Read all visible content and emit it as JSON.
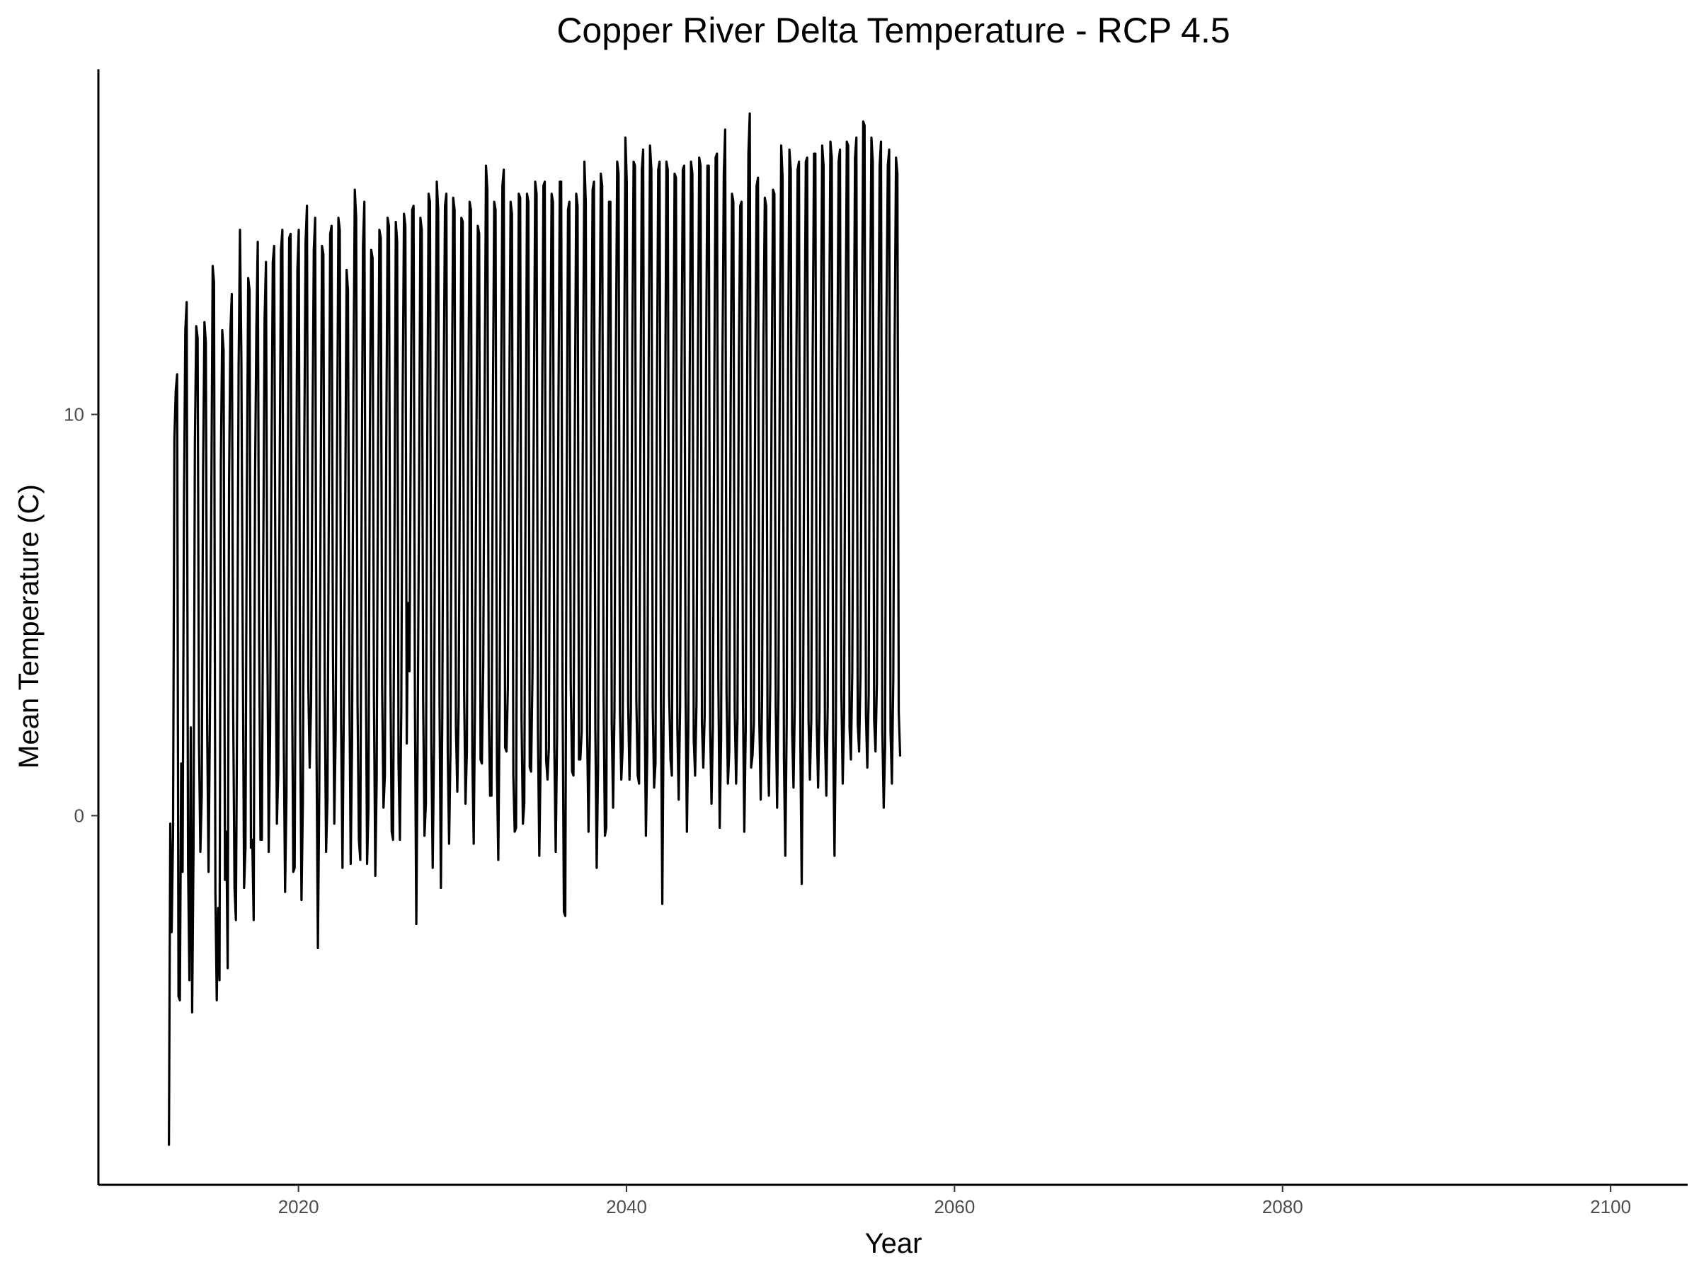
{
  "chart_data": {
    "type": "line",
    "title": "Copper River Delta Temperature - RCP 4.5",
    "xlabel": "Year",
    "ylabel": "Mean Temperature (C)",
    "xlim": [
      2007.8,
      2104.7
    ],
    "ylim": [
      -9.2,
      18.6
    ],
    "x_ticks": [
      2020,
      2040,
      2060,
      2080,
      2100
    ],
    "x_tick_labels": [
      "2020",
      "2040",
      "2060",
      "2080",
      "2100"
    ],
    "y_ticks": [
      0,
      10
    ],
    "y_tick_labels": [
      "0",
      "10"
    ],
    "grid": false,
    "legend": "none",
    "line_color": "#000000",
    "axis_color": "#000000",
    "series": [
      {
        "x_start": 2012.1,
        "x_step": 0.08333,
        "values": [
          -8.2,
          -0.2,
          -2.9,
          -0.5,
          9.4,
          10.6,
          11.0,
          -4.5,
          -4.6,
          1.3,
          -1.4,
          7.7,
          12.1,
          12.8,
          -1.2,
          -4.1,
          2.2,
          -4.9,
          -0.8,
          9.3,
          12.2,
          11.9,
          1.8,
          -0.9,
          0.5,
          8.6,
          12.3,
          11.8,
          2.1,
          -1.4,
          2.5,
          7.8,
          13.7,
          13.3,
          -1.9,
          -4.6,
          -2.3,
          -4.1,
          8.8,
          12.1,
          11.6,
          -1.6,
          -0.4,
          -3.8,
          8.3,
          12.1,
          13.0,
          2.7,
          -1.8,
          -2.6,
          3.3,
          11.2,
          14.6,
          11.4,
          4.3,
          -1.8,
          -0.8,
          7.9,
          13.4,
          13.1,
          -0.8,
          -0.6,
          -2.6,
          8.3,
          12.2,
          14.3,
          4.4,
          -0.6,
          -0.6,
          6.3,
          12.4,
          13.8,
          4.6,
          -0.9,
          2.0,
          8.7,
          13.8,
          14.2,
          4.9,
          -0.2,
          1.1,
          8.4,
          14.1,
          14.6,
          2.0,
          -1.9,
          0.5,
          9.0,
          14.4,
          14.5,
          3.9,
          -1.4,
          -1.3,
          6.8,
          13.6,
          14.6,
          2.4,
          -2.1,
          0.3,
          9.0,
          14.3,
          15.2,
          3.2,
          1.2,
          2.8,
          9.4,
          14.1,
          14.9,
          1.6,
          -3.3,
          0.6,
          7.8,
          14.2,
          14.0,
          3.1,
          -0.9,
          0.4,
          7.7,
          14.5,
          14.7,
          4.1,
          -0.2,
          2.1,
          8.9,
          14.9,
          14.6,
          2.3,
          -1.3,
          2.8,
          7.7,
          13.6,
          13.1,
          3.4,
          -1.2,
          1.8,
          10.7,
          15.6,
          14.9,
          2.8,
          -0.6,
          -1.1,
          7.8,
          14.2,
          15.3,
          4.1,
          -1.2,
          0.2,
          9.4,
          14.1,
          13.9,
          3.0,
          -1.5,
          0.9,
          9.2,
          14.6,
          14.4,
          3.2,
          0.2,
          1.0,
          9.1,
          14.9,
          14.7,
          3.7,
          -0.4,
          -0.6,
          6.8,
          14.8,
          14.3,
          1.3,
          -0.6,
          2.6,
          10.3,
          15.0,
          14.7,
          1.8,
          5.3,
          3.6,
          9.9,
          15.1,
          15.2,
          2.8,
          -2.7,
          1.8,
          7.9,
          14.9,
          14.6,
          2.9,
          -0.5,
          0.3,
          9.1,
          15.5,
          15.3,
          1.8,
          -1.3,
          1.8,
          10.3,
          15.8,
          15.1,
          2.8,
          -1.8,
          2.4,
          10.5,
          15.2,
          15.5,
          1.6,
          -0.7,
          1.6,
          10.1,
          15.4,
          15.1,
          2.2,
          0.6,
          2.7,
          9.4,
          14.9,
          14.8,
          3.1,
          0.3,
          1.6,
          9.8,
          15.3,
          15.1,
          1.5,
          -0.7,
          3.0,
          9.5,
          14.7,
          14.5,
          1.4,
          1.3,
          3.8,
          10.5,
          16.2,
          15.6,
          2.7,
          0.5,
          0.5,
          10.0,
          15.3,
          15.1,
          1.1,
          -1.1,
          2.9,
          10.2,
          15.7,
          16.1,
          1.7,
          1.6,
          3.2,
          10.1,
          15.3,
          15.0,
          1.0,
          -0.4,
          -0.3,
          8.7,
          15.5,
          15.4,
          2.4,
          -0.2,
          0.3,
          8.6,
          15.5,
          15.3,
          1.2,
          1.1,
          3.5,
          10.1,
          15.8,
          15.5,
          2.1,
          -1.0,
          1.5,
          9.6,
          15.7,
          15.8,
          1.4,
          0.9,
          1.7,
          10.6,
          15.5,
          15.3,
          1.7,
          -0.9,
          2.0,
          10.2,
          15.8,
          15.8,
          3.2,
          -2.4,
          -2.5,
          7.9,
          15.1,
          15.3,
          3.3,
          1.1,
          1.0,
          9.8,
          15.5,
          15.2,
          1.4,
          1.4,
          2.1,
          11.0,
          16.3,
          15.3,
          2.1,
          -0.4,
          2.0,
          10.4,
          15.6,
          15.8,
          2.2,
          -1.3,
          1.2,
          11.0,
          16.0,
          15.7,
          3.1,
          -0.5,
          -0.3,
          9.1,
          15.3,
          15.3,
          2.3,
          0.2,
          2.6,
          11.3,
          16.3,
          16.0,
          2.6,
          0.9,
          1.7,
          10.7,
          16.9,
          15.8,
          2.8,
          0.9,
          2.6,
          11.5,
          16.3,
          16.2,
          2.9,
          1.0,
          0.8,
          9.8,
          16.1,
          16.6,
          3.1,
          -0.5,
          1.6,
          11.2,
          16.7,
          16.1,
          2.7,
          0.7,
          1.3,
          10.1,
          16.1,
          16.3,
          2.9,
          -2.2,
          2.7,
          9.4,
          16.3,
          16.1,
          3.0,
          1.4,
          1.0,
          10.3,
          16.0,
          15.9,
          2.2,
          0.4,
          2.7,
          10.9,
          16.1,
          16.2,
          3.2,
          -0.4,
          2.1,
          10.7,
          16.3,
          16.0,
          1.9,
          1.0,
          2.8,
          11.2,
          16.4,
          16.2,
          2.3,
          1.2,
          2.5,
          11.2,
          16.2,
          16.2,
          2.2,
          0.3,
          2.2,
          10.4,
          16.4,
          16.5,
          3.4,
          -0.3,
          1.9,
          11.2,
          16.0,
          17.1,
          3.1,
          0.8,
          1.6,
          10.2,
          15.5,
          15.3,
          2.6,
          0.8,
          2.4,
          11.3,
          15.2,
          15.3,
          2.9,
          -0.4,
          2.1,
          10.2,
          16.5,
          17.5,
          1.2,
          1.5,
          2.3,
          10.9,
          15.7,
          15.9,
          2.3,
          0.4,
          3.0,
          11.8,
          15.4,
          15.2,
          1.9,
          0.5,
          3.3,
          10.6,
          15.6,
          15.5,
          2.7,
          0.2,
          3.1,
          11.3,
          16.7,
          15.9,
          1.4,
          -1.0,
          2.3,
          11.2,
          16.6,
          16.1,
          2.1,
          0.7,
          2.9,
          10.9,
          16.1,
          16.3,
          1.8,
          -1.7,
          2.6,
          11.0,
          16.3,
          16.4,
          2.4,
          0.9,
          2.4,
          11.4,
          16.5,
          16.5,
          2.3,
          0.7,
          2.6,
          11.9,
          16.7,
          16.2,
          2.0,
          0.5,
          2.7,
          11.5,
          16.8,
          16.4,
          1.9,
          -1.0,
          2.3,
          10.8,
          16.3,
          16.6,
          3.1,
          0.8,
          2.5,
          11.3,
          16.8,
          16.7,
          2.2,
          1.4,
          3.6,
          10.5,
          16.4,
          16.9,
          2.3,
          1.6,
          3.5,
          11.6,
          17.3,
          17.2,
          2.5,
          1.2,
          3.0,
          12.3,
          16.9,
          16.3,
          2.4,
          1.6,
          3.3,
          10.4,
          16.2,
          16.8,
          2.1,
          0.2,
          1.7,
          12.4,
          16.2,
          16.6,
          2.1,
          0.8,
          3.4,
          11.8,
          16.4,
          16.0,
          2.6,
          1.5
        ]
      }
    ]
  }
}
